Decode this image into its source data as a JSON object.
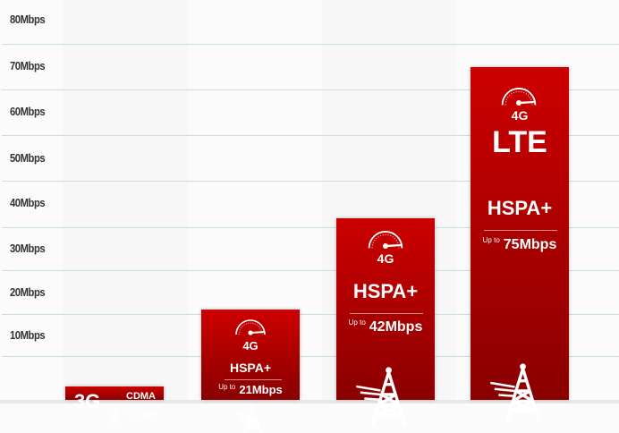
{
  "chart_data": {
    "type": "bar",
    "ylabel": "",
    "xlabel": "",
    "y_ticks": [
      "80Mbps",
      "70Mbps",
      "60Mbps",
      "50Mbps",
      "40Mbps",
      "30Mbps",
      "20Mbps",
      "10Mbps"
    ],
    "ylim": [
      0,
      80
    ],
    "grid": true,
    "bar_color": "#c00000",
    "categories": [
      "3G CDMA",
      "4G HSPA+",
      "4G HSPA+",
      "4G LTE HSPA+"
    ],
    "values": [
      3,
      21,
      42,
      75
    ],
    "bars": [
      {
        "gen": "3G",
        "tech": "CDMA",
        "speed": "3Mbps"
      },
      {
        "gen": "4G",
        "tech": "HSPA+",
        "upto": "Up to",
        "speed": "21Mbps"
      },
      {
        "gen": "4G",
        "tech": "HSPA+",
        "upto": "Up to",
        "speed": "42Mbps"
      },
      {
        "gen": "4G",
        "tech2": "LTE",
        "tech": "HSPA+",
        "upto": "Up to",
        "speed": "75Mbps"
      }
    ]
  }
}
